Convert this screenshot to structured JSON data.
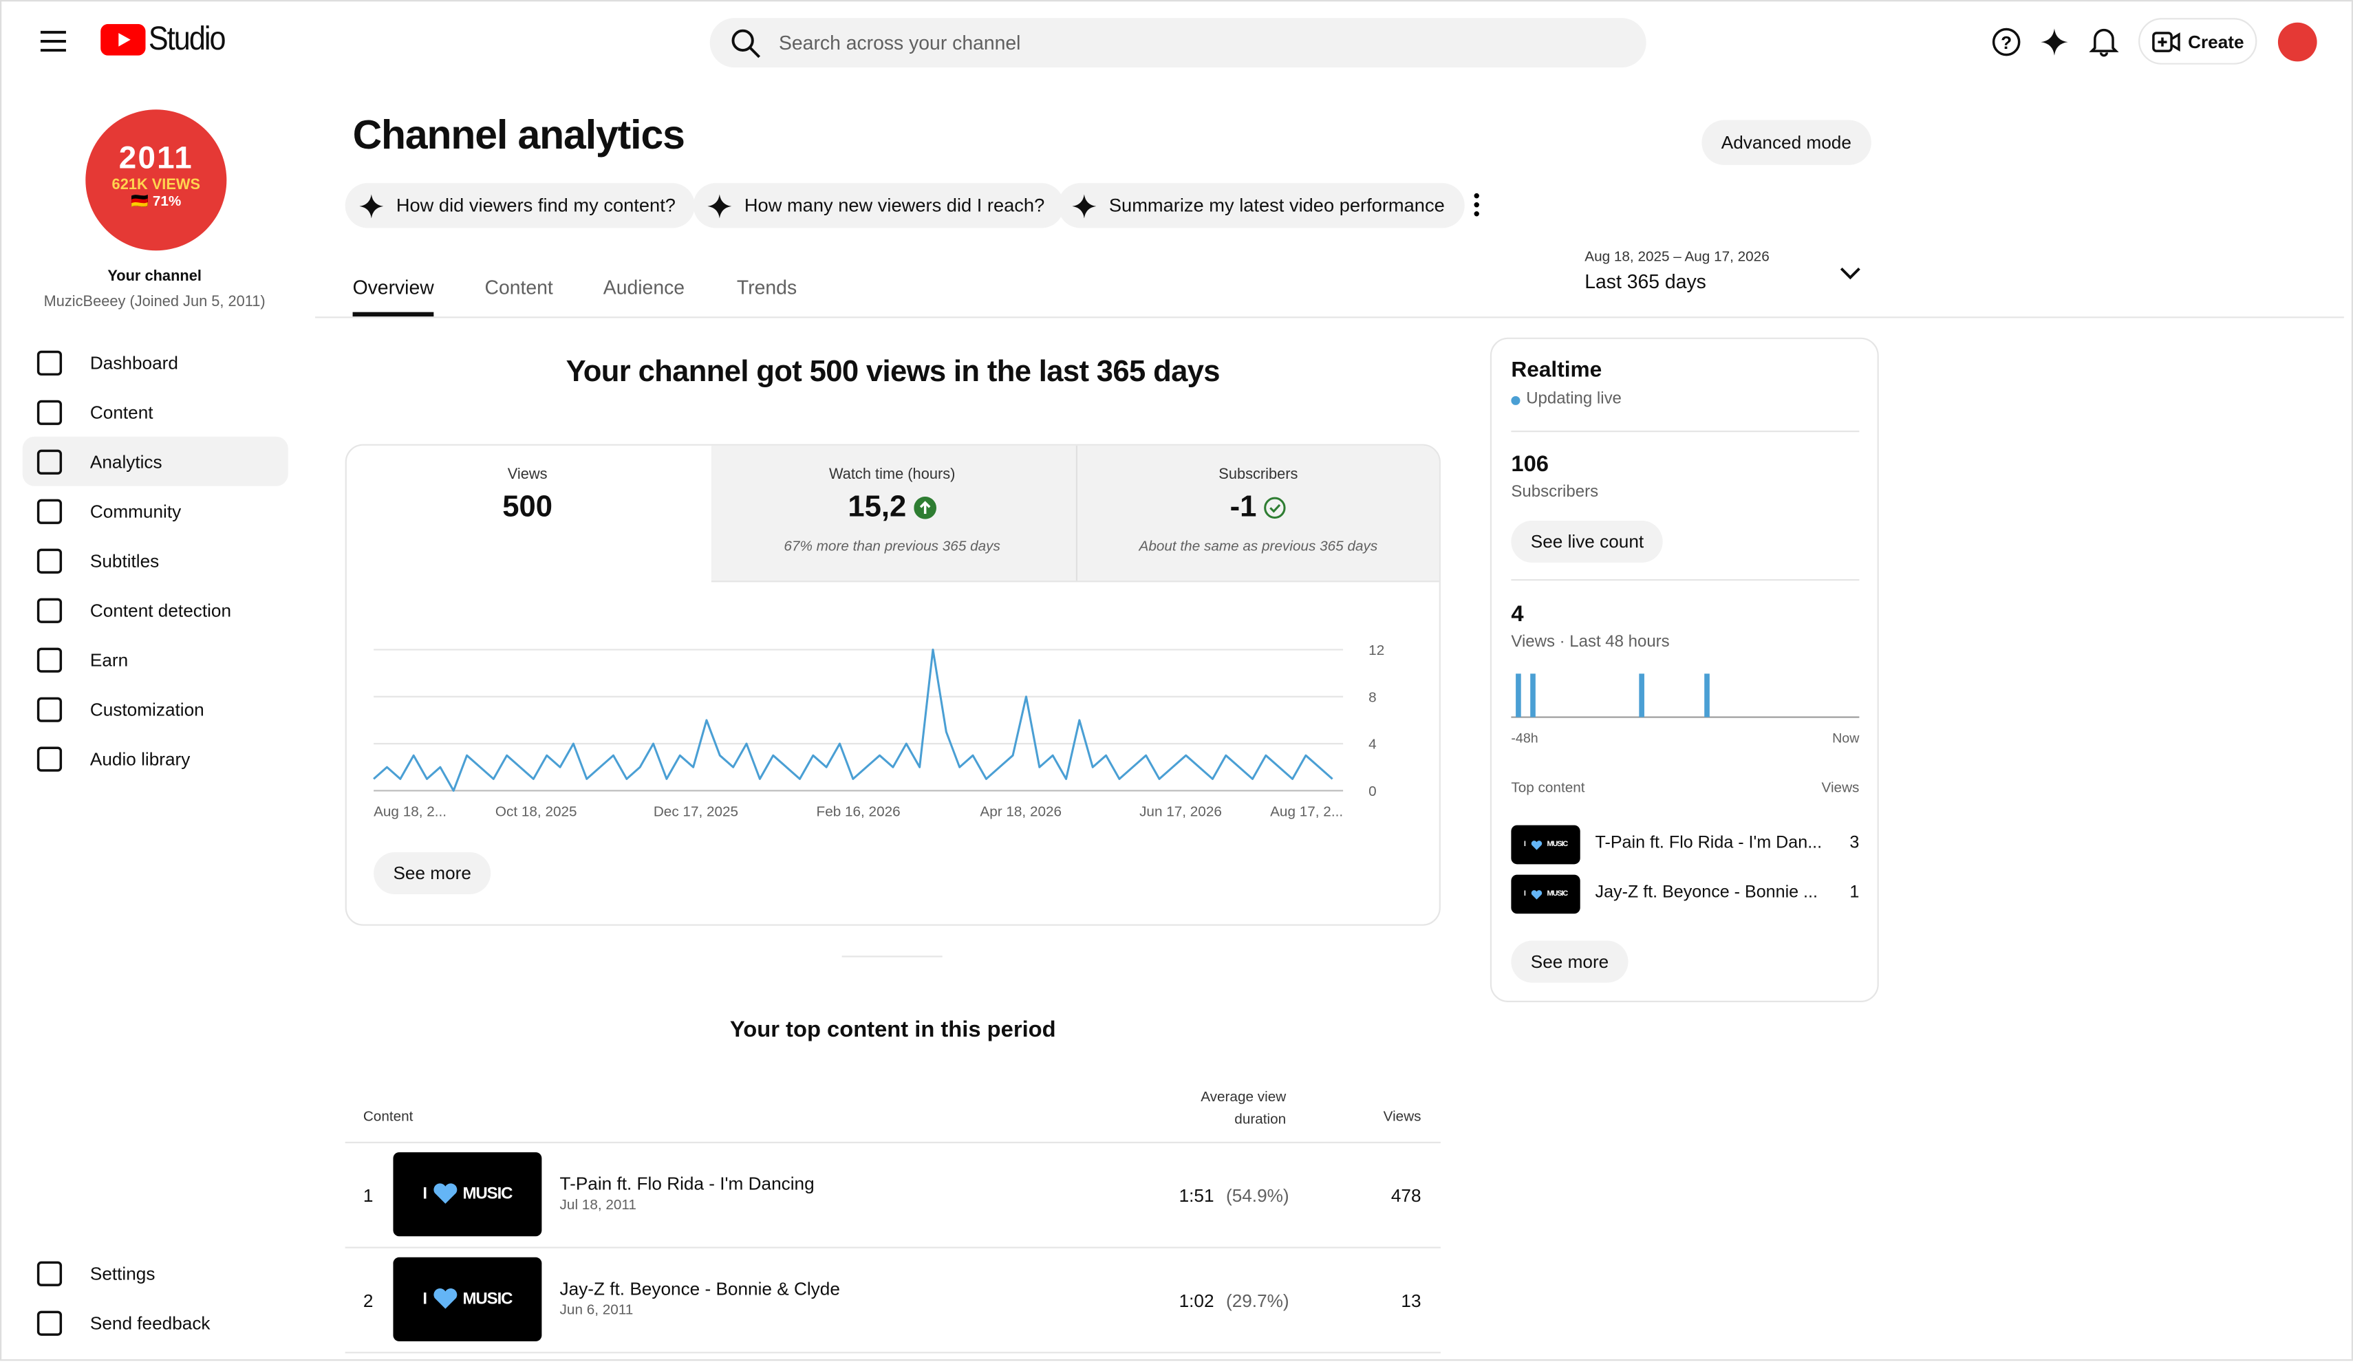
{
  "header": {
    "logo": "Studio",
    "search_placeholder": "Search across your channel",
    "create": "Create"
  },
  "sidebar": {
    "avatar_lines": [
      "2011",
      "621K VIEWS",
      "🇩🇪 71%"
    ],
    "your_channel": "Your channel",
    "channel_info": "MuzicBeeey (Joined Jun 5, 2011)",
    "nav": [
      "Dashboard",
      "Content",
      "Analytics",
      "Community",
      "Subtitles",
      "Content detection",
      "Earn",
      "Customization",
      "Audio library"
    ],
    "active": "Analytics",
    "footer_nav": [
      "Settings",
      "Send feedback"
    ]
  },
  "page": {
    "title": "Channel analytics",
    "advanced": "Advanced mode",
    "prompts": [
      "How did viewers find my content?",
      "How many new viewers did I reach?",
      "Summarize my latest video performance"
    ],
    "tabs": [
      "Overview",
      "Content",
      "Audience",
      "Trends"
    ],
    "date_range": "Aug 18, 2025 – Aug 17, 2026",
    "period": "Last 365 days",
    "headline": "Your channel got 500 views in the last 365 days",
    "see_more": "See more"
  },
  "metrics": [
    {
      "label": "Views",
      "value": "500"
    },
    {
      "label": "Watch time (hours)",
      "value": "15,2",
      "note": "67% more than previous 365 days"
    },
    {
      "label": "Subscribers",
      "value": "-1",
      "note": "About the same as previous 365 days"
    }
  ],
  "chart_data": [
    {
      "type": "line",
      "x": [
        0,
        5,
        10,
        15,
        20,
        25,
        30,
        35,
        40,
        45,
        50,
        55,
        60,
        65,
        70,
        75,
        80,
        85,
        90,
        95,
        100,
        105,
        110,
        115,
        120,
        125,
        130,
        135,
        140,
        145,
        150,
        155,
        160,
        165,
        170,
        175,
        180,
        185,
        190,
        195,
        200,
        205,
        210,
        215,
        220,
        225,
        230,
        235,
        240,
        245,
        250,
        255,
        260,
        265,
        270,
        275,
        280,
        285,
        290,
        295,
        300,
        305,
        310,
        315,
        320,
        325,
        330,
        335,
        340,
        345,
        350,
        355,
        360
      ],
      "values": [
        1,
        2,
        1,
        3,
        1,
        2,
        0,
        3,
        2,
        1,
        3,
        2,
        1,
        3,
        2,
        4,
        1,
        2,
        3,
        1,
        2,
        4,
        1,
        3,
        2,
        6,
        3,
        2,
        4,
        1,
        3,
        2,
        1,
        3,
        2,
        4,
        1,
        2,
        3,
        2,
        4,
        2,
        12,
        5,
        2,
        3,
        1,
        2,
        3,
        8,
        2,
        3,
        1,
        6,
        2,
        3,
        1,
        2,
        3,
        1,
        2,
        3,
        2,
        1,
        3,
        2,
        1,
        3,
        2,
        1,
        3,
        2,
        1
      ],
      "color": "#4a9fd4",
      "xlim": [
        0,
        364
      ],
      "ylim": [
        0,
        12
      ],
      "yticks": [
        0,
        4,
        8,
        12
      ],
      "xticks": [
        {
          "value": 0,
          "label": "Aug 18, 2..."
        },
        {
          "value": 61,
          "label": "Oct 18, 2025"
        },
        {
          "value": 121,
          "label": "Dec 17, 2025"
        },
        {
          "value": 182,
          "label": "Feb 16, 2026"
        },
        {
          "value": 243,
          "label": "Apr 18, 2026"
        },
        {
          "value": 303,
          "label": "Jun 17, 2026"
        },
        {
          "value": 364,
          "label": "Aug 17, 2..."
        }
      ],
      "grid": true
    },
    {
      "type": "bar",
      "x": [
        -47,
        -45,
        -30,
        -21
      ],
      "values": [
        1,
        1,
        1,
        1
      ],
      "color": "#4a9fd4",
      "xlim": [
        -48,
        0
      ],
      "ylim": [
        0,
        1
      ],
      "xticks": [
        {
          "value": -48,
          "label": "-48h"
        },
        {
          "value": 0,
          "label": "Now"
        }
      ]
    }
  ],
  "top_content": {
    "title": "Your top content in this period",
    "columns": [
      "Content",
      "Average view duration",
      "Views"
    ],
    "rows": [
      {
        "rank": "1",
        "title": "T-Pain ft. Flo Rida - I'm Dancing",
        "date": "Jul 18, 2011",
        "duration": "1:51",
        "percent": "(54.9%)",
        "views": "478"
      },
      {
        "rank": "2",
        "title": "Jay-Z ft. Beyonce - Bonnie & Clyde",
        "date": "Jun 6, 2011",
        "duration": "1:02",
        "percent": "(29.7%)",
        "views": "13"
      }
    ]
  },
  "thumbnail": {
    "left": "I",
    "right": "MUSIC"
  },
  "realtime": {
    "title": "Realtime",
    "status": "Updating live",
    "subscribers": "106",
    "subscribers_label": "Subscribers",
    "see_live": "See live count",
    "views": "4",
    "views_label": "Views · Last 48 hours",
    "top_content_label": "Top content",
    "views_col": "Views",
    "items": [
      {
        "title": "T-Pain ft. Flo Rida - I'm Dan...",
        "views": "3"
      },
      {
        "title": "Jay-Z ft. Beyonce - Bonnie ...",
        "views": "1"
      }
    ],
    "see_more": "See more"
  }
}
